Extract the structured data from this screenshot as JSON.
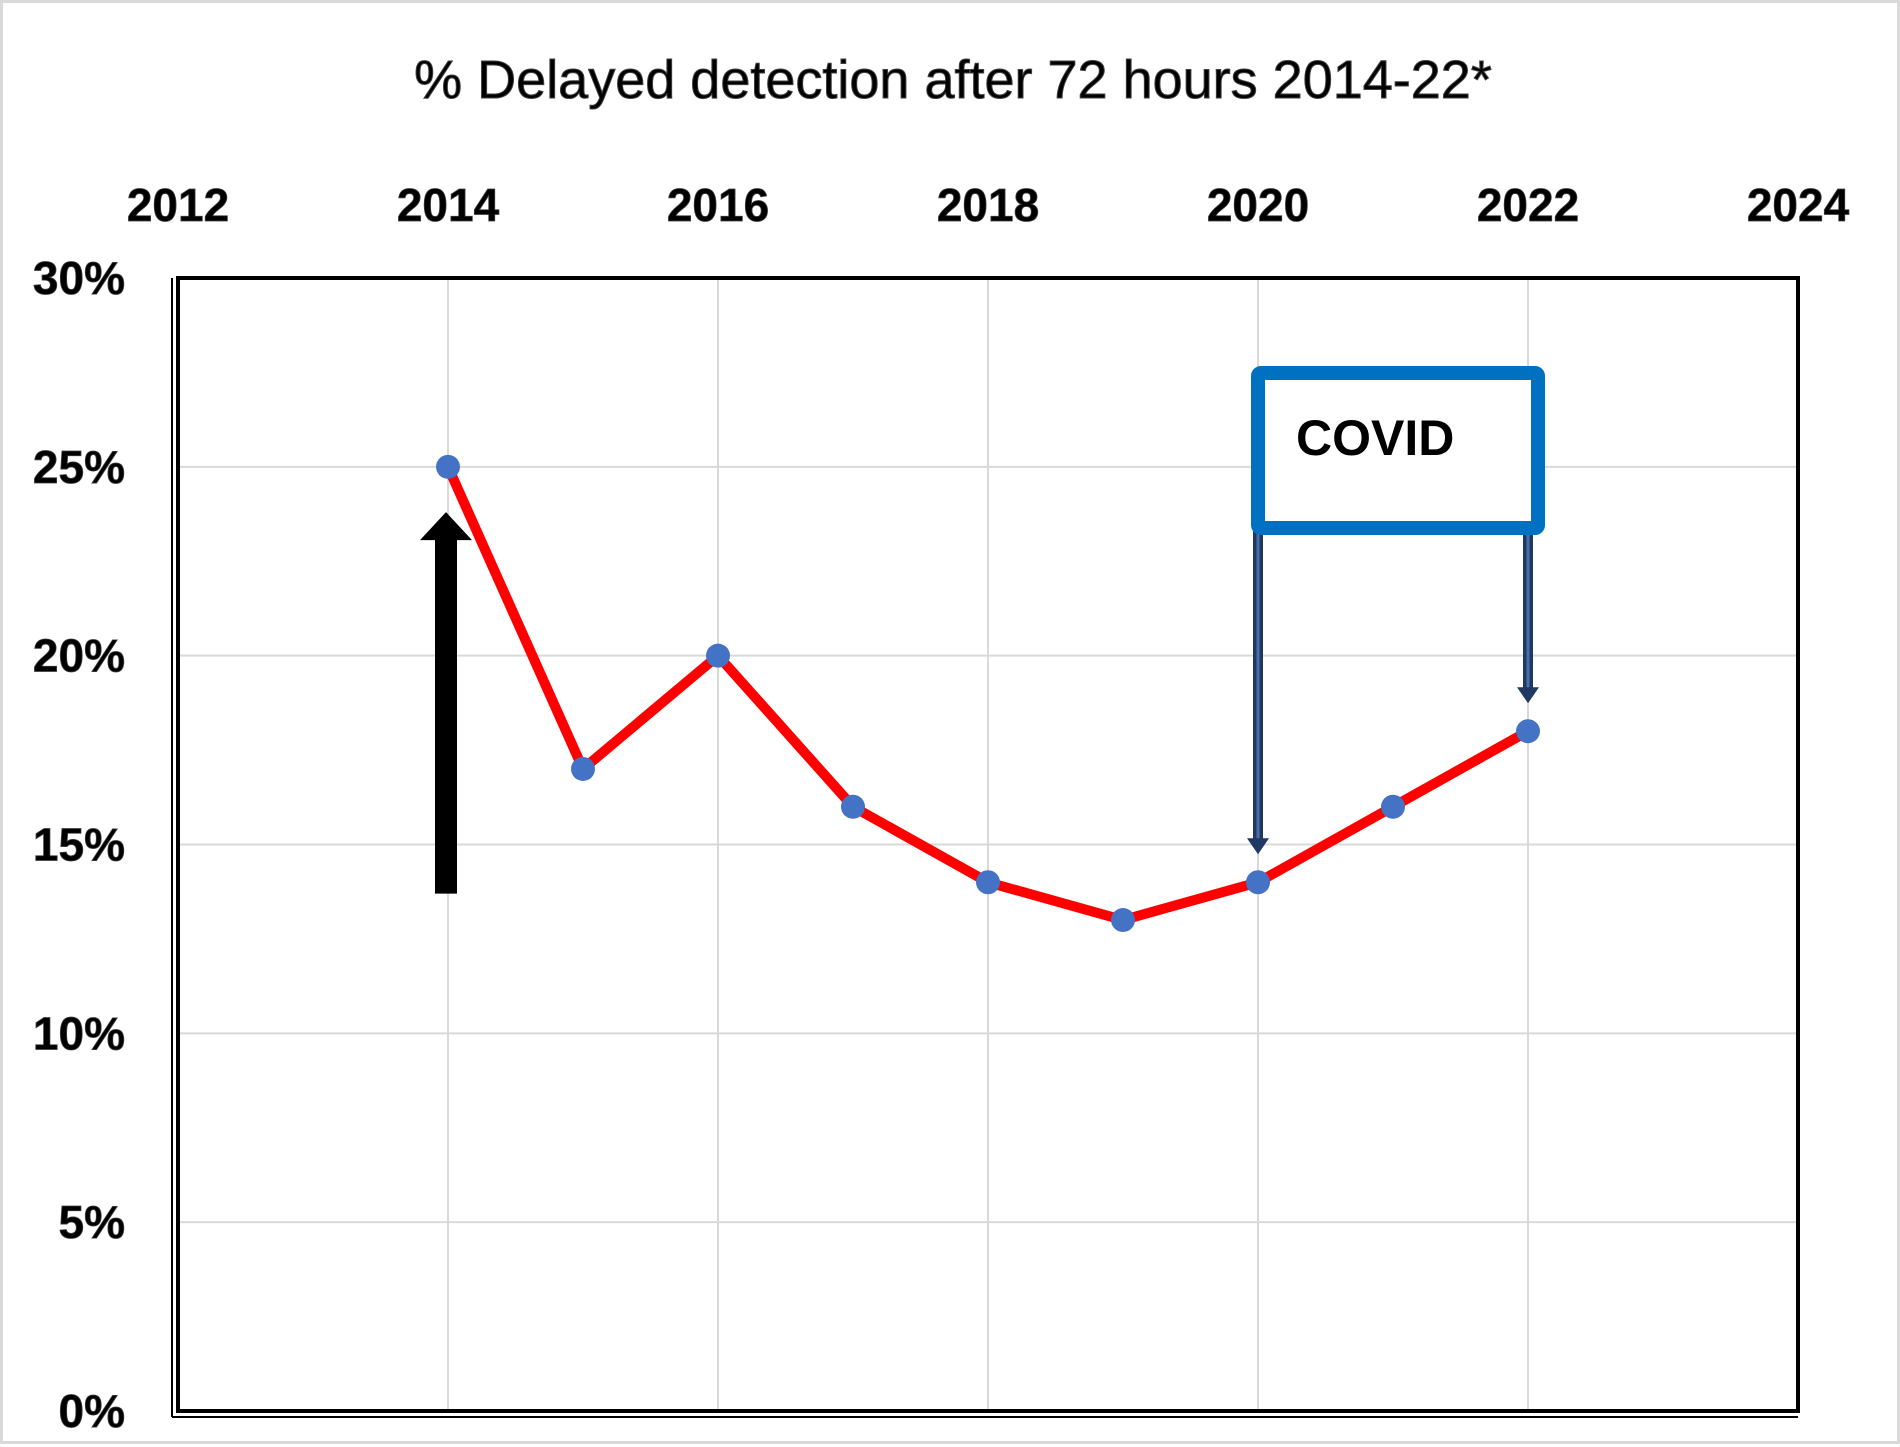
{
  "chart_data": {
    "type": "line",
    "title": "% Delayed detection after 72 hours 2014-22*",
    "xlabel": "",
    "ylabel": "",
    "x_axis_position": "top",
    "xlim": [
      2012,
      2024
    ],
    "ylim": [
      0,
      30
    ],
    "x_ticks": [
      "2012",
      "2014",
      "2016",
      "2018",
      "2020",
      "2022",
      "2024"
    ],
    "y_ticks": [
      "0%",
      "5%",
      "10%",
      "15%",
      "20%",
      "25%",
      "30%"
    ],
    "grid": true,
    "series": [
      {
        "x": [
          2014,
          2015,
          2016,
          2017,
          2018,
          2019,
          2020,
          2021,
          2022
        ],
        "values": [
          25,
          17,
          20,
          16,
          14,
          13,
          14,
          16,
          18
        ]
      }
    ],
    "annotations": [
      {
        "type": "text-box",
        "text": "COVID",
        "arrows_to_x": [
          2020,
          2022
        ]
      },
      {
        "type": "arrow",
        "direction": "up",
        "x": 2014,
        "from_y": 13.7,
        "to_y": 23.8
      }
    ],
    "colors": {
      "line": "#ff0000",
      "marker": "#4472c4",
      "grid": "#d9d9d9",
      "covid_box": "#0070c0",
      "covid_arrow": "#1f3864",
      "up_arrow": "#000000"
    }
  }
}
